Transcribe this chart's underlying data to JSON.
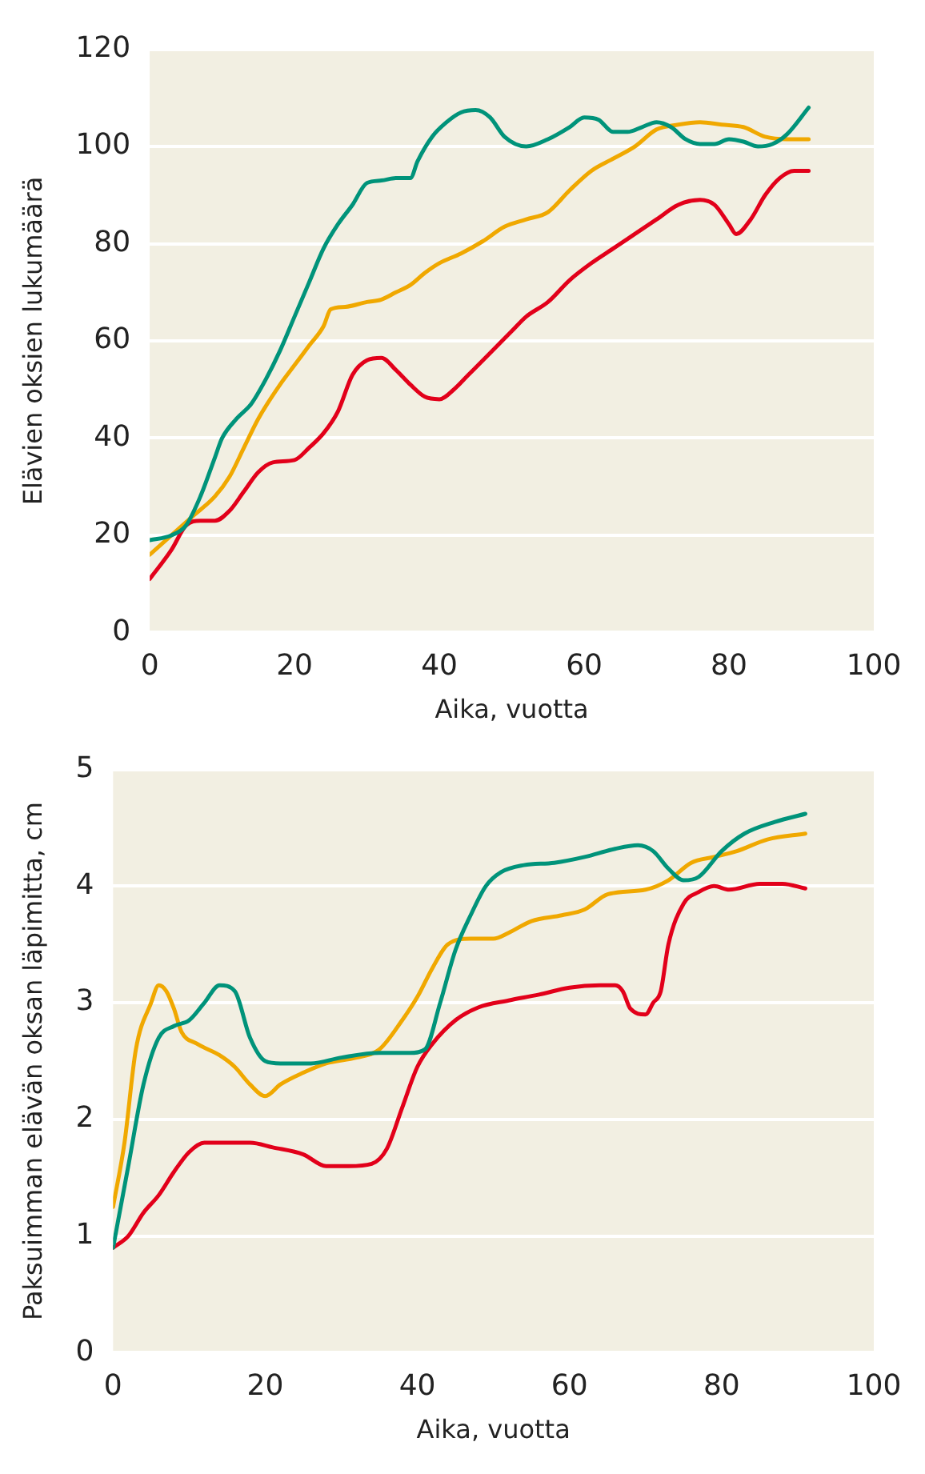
{
  "chart_data": [
    {
      "type": "line",
      "ylabel": "Elävien oksien lukumäärä",
      "xlabel": "Aika, vuotta",
      "xlim": [
        0,
        100
      ],
      "xticks": [
        0,
        20,
        40,
        60,
        80,
        100
      ],
      "ylim": [
        0,
        120
      ],
      "yticks": [
        0,
        20,
        40,
        60,
        80,
        100,
        120
      ],
      "grid": "y",
      "legend": false,
      "marker": "none",
      "line_style": "solid",
      "series": [
        {
          "color": "#00937a",
          "x": [
            0,
            3,
            5,
            7,
            9,
            10,
            12,
            14,
            16,
            18,
            20,
            22,
            24,
            26,
            28,
            30,
            32,
            34,
            36,
            37,
            39,
            41,
            43,
            45,
            47,
            49,
            52,
            55,
            58,
            60,
            62,
            64,
            66,
            68,
            70,
            72,
            74,
            76,
            78,
            80,
            82,
            84,
            86,
            88,
            91
          ],
          "values": [
            19,
            20,
            22,
            28,
            36,
            40,
            44,
            47,
            52,
            58,
            65,
            72,
            79,
            84,
            88,
            92.5,
            93,
            93.5,
            93.5,
            97,
            102,
            105,
            107,
            107.5,
            106,
            102,
            100,
            101.5,
            104,
            106,
            105.5,
            103,
            103,
            104,
            105,
            104,
            101.5,
            100.5,
            100.5,
            101.5,
            101,
            100,
            100.5,
            102.5,
            108
          ]
        },
        {
          "color": "#f0a800",
          "x": [
            0,
            3,
            6,
            9,
            11,
            13,
            15,
            18,
            20,
            22,
            24,
            25,
            27,
            30,
            32,
            34,
            36,
            38,
            40,
            43,
            46,
            49,
            52,
            55,
            58,
            61,
            64,
            67,
            70,
            73,
            76,
            79,
            82,
            85,
            88,
            91
          ],
          "values": [
            16,
            20,
            24,
            28,
            32,
            38,
            44,
            51,
            55,
            59,
            63,
            66.5,
            67,
            68,
            68.5,
            70,
            71.5,
            74,
            76,
            78,
            80.5,
            83.5,
            85,
            86.5,
            91,
            95,
            97.5,
            100,
            103.5,
            104.5,
            105,
            104.5,
            104,
            102,
            101.5,
            101.5
          ]
        },
        {
          "color": "#e2001a",
          "x": [
            0,
            3,
            5,
            7,
            9,
            11,
            13,
            15,
            17,
            20,
            22,
            24,
            26,
            28,
            30,
            32,
            34,
            36,
            38,
            40,
            42,
            44,
            47,
            50,
            52,
            55,
            58,
            61,
            64,
            67,
            70,
            73,
            76,
            78,
            80,
            81,
            83,
            85,
            87,
            89,
            91
          ],
          "values": [
            11,
            17,
            22,
            23,
            23,
            25,
            29,
            33,
            35,
            35.5,
            38,
            41,
            45.5,
            53,
            56,
            56.5,
            54,
            51,
            48.5,
            48,
            50,
            53,
            57.5,
            62,
            65,
            68,
            72.5,
            76,
            79,
            82,
            85,
            88,
            89,
            88,
            84,
            82,
            85,
            90,
            93.5,
            95,
            95
          ]
        }
      ]
    },
    {
      "type": "line",
      "ylabel": "Paksuimman elävän oksan läpimitta, cm",
      "xlabel": "Aika, vuotta",
      "xlim": [
        0,
        100
      ],
      "xticks": [
        0,
        20,
        40,
        60,
        80,
        100
      ],
      "ylim": [
        0,
        5
      ],
      "yticks": [
        0,
        1,
        2,
        3,
        4,
        5
      ],
      "grid": "y",
      "legend": false,
      "marker": "none",
      "line_style": "solid",
      "series": [
        {
          "color": "#00937a",
          "x": [
            0,
            2,
            4,
            6,
            8,
            10,
            12,
            14,
            16,
            18,
            20,
            22,
            26,
            30,
            35,
            39,
            41,
            43,
            45,
            47,
            49,
            51,
            54,
            58,
            62,
            66,
            69,
            71,
            73,
            75,
            77,
            80,
            83,
            87,
            91
          ],
          "values": [
            0.9,
            1.6,
            2.3,
            2.7,
            2.8,
            2.85,
            3.0,
            3.15,
            3.1,
            2.7,
            2.5,
            2.48,
            2.48,
            2.53,
            2.57,
            2.57,
            2.6,
            3.0,
            3.45,
            3.75,
            4.0,
            4.12,
            4.18,
            4.2,
            4.25,
            4.32,
            4.35,
            4.3,
            4.15,
            4.05,
            4.08,
            4.3,
            4.45,
            4.55,
            4.62
          ]
        },
        {
          "color": "#f0a800",
          "x": [
            0,
            1.5,
            3,
            5,
            6,
            7,
            8,
            9,
            11,
            14,
            16,
            18,
            20,
            22,
            25,
            28,
            32,
            35,
            38,
            40,
            42,
            44,
            47,
            50,
            52,
            55,
            59,
            62,
            65,
            70,
            73,
            76,
            79,
            82,
            86,
            91
          ],
          "values": [
            1.25,
            1.8,
            2.6,
            3.0,
            3.15,
            3.1,
            2.95,
            2.75,
            2.65,
            2.55,
            2.45,
            2.3,
            2.2,
            2.3,
            2.4,
            2.48,
            2.53,
            2.6,
            2.85,
            3.05,
            3.3,
            3.5,
            3.55,
            3.55,
            3.6,
            3.7,
            3.75,
            3.8,
            3.93,
            3.97,
            4.05,
            4.2,
            4.25,
            4.3,
            4.4,
            4.45
          ]
        },
        {
          "color": "#e2001a",
          "x": [
            0,
            2,
            4,
            6,
            8,
            10,
            12,
            15,
            18,
            21,
            25,
            28,
            31,
            34,
            36,
            38,
            40,
            42,
            45,
            48,
            52,
            56,
            60,
            64,
            66,
            67,
            68,
            70,
            71,
            72,
            73,
            75,
            77,
            79,
            81,
            85,
            88,
            91
          ],
          "values": [
            0.9,
            1.0,
            1.2,
            1.35,
            1.55,
            1.72,
            1.8,
            1.8,
            1.8,
            1.76,
            1.7,
            1.6,
            1.6,
            1.62,
            1.75,
            2.1,
            2.45,
            2.65,
            2.85,
            2.96,
            3.02,
            3.07,
            3.13,
            3.15,
            3.15,
            3.1,
            2.95,
            2.9,
            3.0,
            3.1,
            3.5,
            3.85,
            3.95,
            4.0,
            3.97,
            4.02,
            4.02,
            3.98
          ]
        }
      ]
    }
  ]
}
